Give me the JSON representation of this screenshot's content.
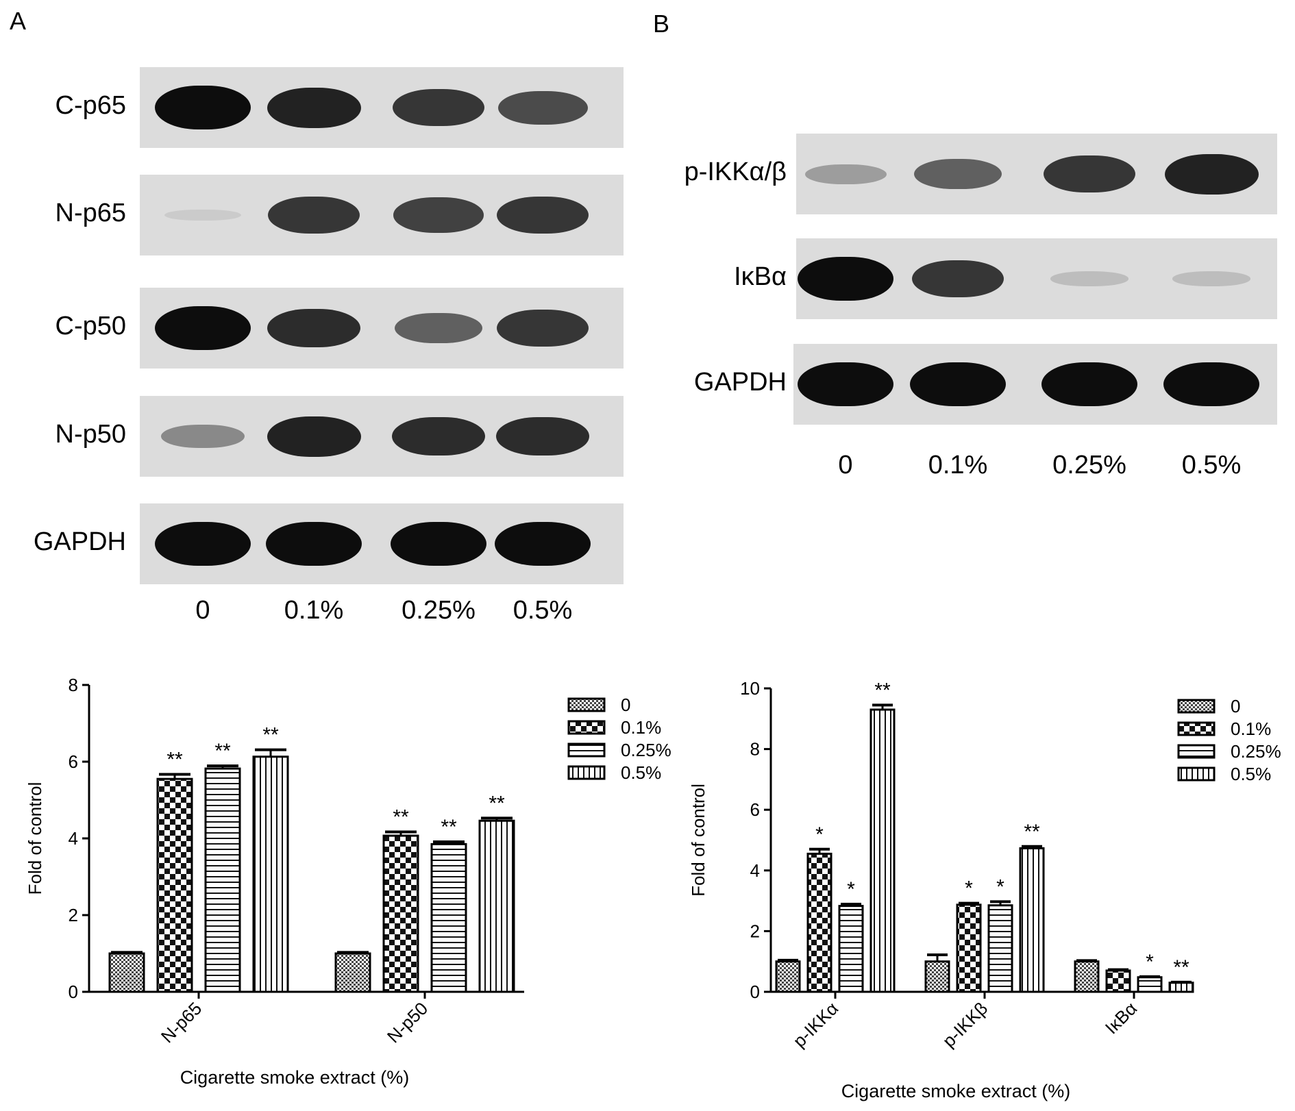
{
  "panels": {
    "a_letter": "A",
    "b_letter": "B"
  },
  "blot_a": {
    "lanes": [
      "0",
      "0.1%",
      "0.25%",
      "0.5%"
    ],
    "rows": [
      {
        "label": "C-p65",
        "intensity": [
          1.0,
          0.9,
          0.8,
          0.7
        ]
      },
      {
        "label": "N-p65",
        "intensity": [
          0.05,
          0.8,
          0.75,
          0.8
        ]
      },
      {
        "label": "C-p50",
        "intensity": [
          1.0,
          0.85,
          0.6,
          0.8
        ]
      },
      {
        "label": "N-p50",
        "intensity": [
          0.4,
          0.9,
          0.85,
          0.85
        ]
      },
      {
        "label": "GAPDH",
        "intensity": [
          1.0,
          1.0,
          1.0,
          1.0
        ]
      }
    ]
  },
  "blot_b": {
    "lanes": [
      "0",
      "0.1%",
      "0.25%",
      "0.5%"
    ],
    "rows": [
      {
        "label": "p-IKKα/β",
        "intensity": [
          0.3,
          0.6,
          0.8,
          0.9
        ]
      },
      {
        "label": "IκBα",
        "intensity": [
          1.0,
          0.8,
          0.15,
          0.15
        ]
      },
      {
        "label": "GAPDH",
        "intensity": [
          1.0,
          1.0,
          1.0,
          1.0
        ]
      }
    ]
  },
  "chart_data": [
    {
      "type": "bar",
      "categories": [
        "N-p65",
        "N-p50"
      ],
      "series": [
        {
          "name": "0",
          "values": [
            1.0,
            1.0
          ],
          "errors": [
            0.03,
            0.03
          ],
          "sig": [
            "",
            ""
          ]
        },
        {
          "name": "0.1%",
          "values": [
            5.55,
            4.07
          ],
          "errors": [
            0.12,
            0.1
          ],
          "sig": [
            "**",
            "**"
          ]
        },
        {
          "name": "0.25%",
          "values": [
            5.82,
            3.85
          ],
          "errors": [
            0.07,
            0.06
          ],
          "sig": [
            "**",
            "**"
          ]
        },
        {
          "name": "0.5%",
          "values": [
            6.13,
            4.46
          ],
          "errors": [
            0.18,
            0.07
          ],
          "sig": [
            "**",
            "**"
          ]
        }
      ],
      "ylabel": "Fold of control",
      "xlabel": "Cigarette smoke extract (%)",
      "ylim": [
        0,
        8
      ],
      "yticks": [
        0,
        2,
        4,
        6,
        8
      ],
      "legend": "top-right",
      "grid": false
    },
    {
      "type": "bar",
      "categories": [
        "p-IKKα",
        "p-IKKβ",
        "IκBα"
      ],
      "series": [
        {
          "name": "0",
          "values": [
            1.0,
            1.0,
            1.0
          ],
          "errors": [
            0.04,
            0.22,
            0.03
          ],
          "sig": [
            "",
            "",
            ""
          ]
        },
        {
          "name": "0.1%",
          "values": [
            4.55,
            2.87,
            0.7
          ],
          "errors": [
            0.15,
            0.05,
            0.03
          ],
          "sig": [
            "*",
            "*",
            ""
          ]
        },
        {
          "name": "0.25%",
          "values": [
            2.83,
            2.85,
            0.48
          ],
          "errors": [
            0.06,
            0.12,
            0.02
          ],
          "sig": [
            "*",
            "*",
            "*"
          ]
        },
        {
          "name": "0.5%",
          "values": [
            9.3,
            4.73,
            0.3
          ],
          "errors": [
            0.15,
            0.06,
            0.02
          ],
          "sig": [
            "**",
            "**",
            "**"
          ]
        }
      ],
      "ylabel": "Fold of control",
      "xlabel": "Cigarette smoke extract (%)",
      "ylim": [
        0,
        10
      ],
      "yticks": [
        0,
        2,
        4,
        6,
        8,
        10
      ],
      "legend": "top-right",
      "grid": false
    }
  ]
}
